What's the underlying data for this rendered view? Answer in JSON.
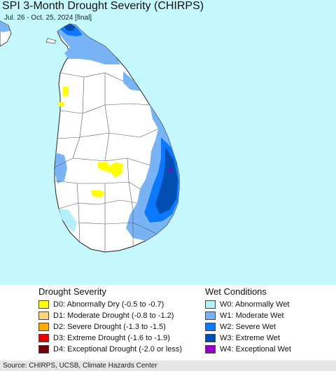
{
  "map": {
    "title": "SPI 3-Month Drought Severity (CHIRPS)",
    "subtitle": "Jul. 26 - Oct. 25, 2024 [final]"
  },
  "legend": {
    "drought": {
      "heading": "Drought Severity",
      "items": [
        {
          "label": "D0: Abnormally Dry (-0.5 to -0.7)",
          "color": "#ffff00"
        },
        {
          "label": "D1: Moderate Drought (-0.8 to -1.2)",
          "color": "#fcd37f"
        },
        {
          "label": "D2: Severe Drought (-1.3 to -1.5)",
          "color": "#ffaa00"
        },
        {
          "label": "D3: Extreme Drought (-1.6 to -1.9)",
          "color": "#e60000"
        },
        {
          "label": "D4: Exceptional Drought (-2.0 or less)",
          "color": "#730000"
        }
      ]
    },
    "wet": {
      "heading": "Wet Conditions",
      "items": [
        {
          "label": "W0: Abnormally Wet",
          "color": "#b4f0fa"
        },
        {
          "label": "W1: Moderate Wet",
          "color": "#78b4f5"
        },
        {
          "label": "W2: Severe Wet",
          "color": "#0a78ff"
        },
        {
          "label": "W3: Extreme Wet",
          "color": "#0050b4"
        },
        {
          "label": "W4: Exceptional Wet",
          "color": "#9600c8"
        }
      ]
    }
  },
  "source": "Source: CHIRPS, UCSB, Climate Hazards Center",
  "colors": {
    "ocean": "#c4f8fc",
    "land": "#ffffff",
    "border": "#333333"
  }
}
